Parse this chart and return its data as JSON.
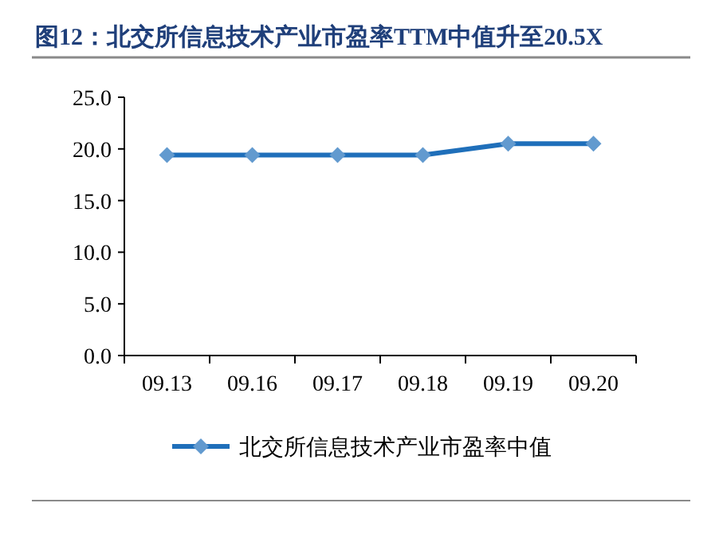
{
  "chart_data": {
    "type": "line",
    "title": "图12：北交所信息技术产业市盈率TTM中值升至20.5X",
    "categories": [
      "09.13",
      "09.16",
      "09.17",
      "09.18",
      "09.19",
      "09.20"
    ],
    "series": [
      {
        "name": "北交所信息技术产业市盈率中值",
        "color": "#1f6fba",
        "values": [
          19.4,
          19.4,
          19.4,
          19.4,
          20.5,
          20.5
        ]
      }
    ],
    "ylim": [
      0,
      25
    ],
    "yticks": [
      {
        "value": 0,
        "label": "0.0"
      },
      {
        "value": 5,
        "label": "5.0"
      },
      {
        "value": 10,
        "label": "10.0"
      },
      {
        "value": 15,
        "label": "15.0"
      },
      {
        "value": 20,
        "label": "20.0"
      },
      {
        "value": 25,
        "label": "25.0"
      }
    ],
    "grid": false,
    "legend": "bottom",
    "marker": "diamond",
    "line_style": "solid"
  }
}
